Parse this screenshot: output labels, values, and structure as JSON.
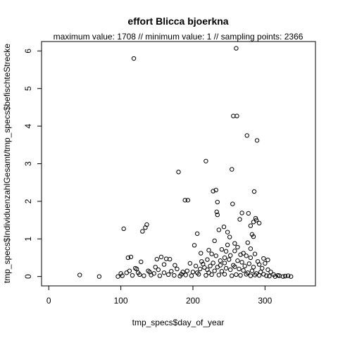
{
  "chart_data": {
    "type": "scatter",
    "title": "effort Blicca bjoerkna",
    "subtitle": "maximum value: 1708  //  minimum value: 1  // sampling points: 2366",
    "xlabel": "tmp_specs$day_of_year",
    "ylabel": "tmp_specs$IndividuenzahlGesamt/tmp_specs$befischteStrecke",
    "xlim": [
      -10,
      370
    ],
    "ylim": [
      -0.25,
      6.25
    ],
    "x_ticks": [
      0,
      100,
      200,
      300
    ],
    "y_ticks": [
      0,
      1,
      2,
      3,
      4,
      5,
      6
    ],
    "grid": false,
    "marker": "open circle",
    "points": [
      [
        43,
        0.04
      ],
      [
        70,
        0.0
      ],
      [
        104,
        1.27
      ],
      [
        118,
        5.8
      ],
      [
        130,
        1.2
      ],
      [
        134,
        1.3
      ],
      [
        136,
        1.38
      ],
      [
        180,
        2.78
      ],
      [
        189,
        2.03
      ],
      [
        193,
        2.03
      ],
      [
        202,
        0.83
      ],
      [
        206,
        1.14
      ],
      [
        211,
        0.62
      ],
      [
        218,
        3.07
      ],
      [
        228,
        2.27
      ],
      [
        232,
        2.3
      ],
      [
        234,
        1.98
      ],
      [
        233,
        1.72
      ],
      [
        234,
        1.64
      ],
      [
        236,
        1.24
      ],
      [
        243,
        1.32
      ],
      [
        248,
        1.18
      ],
      [
        251,
        1.05
      ],
      [
        254,
        2.85
      ],
      [
        255,
        1.93
      ],
      [
        256,
        4.27
      ],
      [
        261,
        4.27
      ],
      [
        260,
        6.07
      ],
      [
        265,
        1.52
      ],
      [
        268,
        1.69
      ],
      [
        275,
        3.75
      ],
      [
        277,
        1.68
      ],
      [
        280,
        1.35
      ],
      [
        282,
        1.12
      ],
      [
        284,
        1.45
      ],
      [
        285,
        2.26
      ],
      [
        287,
        1.55
      ],
      [
        288,
        1.5
      ],
      [
        289,
        3.62
      ],
      [
        292,
        1.42
      ],
      [
        284,
        1.06
      ],
      [
        280,
        0.74
      ],
      [
        276,
        0.9
      ],
      [
        270,
        0.62
      ],
      [
        262,
        0.78
      ],
      [
        258,
        0.88
      ],
      [
        252,
        0.56
      ],
      [
        246,
        0.67
      ],
      [
        240,
        0.72
      ],
      [
        232,
        0.55
      ],
      [
        226,
        0.6
      ],
      [
        110,
        0.5
      ],
      [
        114,
        0.52
      ],
      [
        128,
        0.39
      ],
      [
        150,
        0.46
      ],
      [
        156,
        0.52
      ],
      [
        163,
        0.47
      ],
      [
        168,
        0.46
      ],
      [
        175,
        0.3
      ],
      [
        186,
        0.12
      ],
      [
        196,
        0.35
      ],
      [
        204,
        0.28
      ],
      [
        214,
        0.33
      ],
      [
        220,
        0.18
      ],
      [
        224,
        0.28
      ],
      [
        230,
        0.15
      ],
      [
        238,
        0.42
      ],
      [
        244,
        0.36
      ],
      [
        250,
        0.45
      ],
      [
        256,
        0.3
      ],
      [
        262,
        0.42
      ],
      [
        268,
        0.38
      ],
      [
        272,
        0.28
      ],
      [
        278,
        0.34
      ],
      [
        284,
        0.25
      ],
      [
        290,
        0.4
      ],
      [
        296,
        0.22
      ],
      [
        300,
        0.35
      ],
      [
        304,
        0.18
      ],
      [
        308,
        0.12
      ],
      [
        312,
        0.05
      ],
      [
        318,
        0.03
      ],
      [
        325,
        0.0
      ],
      [
        332,
        0.02
      ],
      [
        336,
        0.0
      ],
      [
        100,
        0.08
      ],
      [
        108,
        0.1
      ],
      [
        112,
        0.15
      ],
      [
        120,
        0.22
      ],
      [
        124,
        0.1
      ],
      [
        140,
        0.12
      ],
      [
        146,
        0.08
      ],
      [
        152,
        0.18
      ],
      [
        160,
        0.1
      ],
      [
        170,
        0.14
      ],
      [
        178,
        0.2
      ],
      [
        184,
        0.06
      ],
      [
        192,
        0.15
      ],
      [
        200,
        0.12
      ],
      [
        210,
        0.2
      ],
      [
        216,
        0.24
      ],
      [
        222,
        0.1
      ],
      [
        228,
        0.36
      ],
      [
        234,
        0.25
      ],
      [
        240,
        0.14
      ],
      [
        246,
        0.22
      ],
      [
        252,
        0.18
      ],
      [
        258,
        0.26
      ],
      [
        264,
        0.2
      ],
      [
        270,
        0.16
      ],
      [
        276,
        0.1
      ],
      [
        282,
        0.15
      ],
      [
        288,
        0.08
      ],
      [
        294,
        0.12
      ],
      [
        298,
        0.06
      ],
      [
        302,
        0.02
      ],
      [
        96,
        0.0
      ],
      [
        102,
        0.02
      ],
      [
        116,
        0.03
      ],
      [
        126,
        0.05
      ],
      [
        132,
        0.02
      ],
      [
        142,
        0.04
      ],
      [
        154,
        0.02
      ],
      [
        166,
        0.05
      ],
      [
        174,
        0.03
      ],
      [
        182,
        0.01
      ],
      [
        190,
        0.04
      ],
      [
        198,
        0.02
      ],
      [
        208,
        0.06
      ],
      [
        218,
        0.03
      ],
      [
        226,
        0.05
      ],
      [
        236,
        0.04
      ],
      [
        244,
        0.06
      ],
      [
        254,
        0.02
      ],
      [
        260,
        0.05
      ],
      [
        266,
        0.03
      ],
      [
        274,
        0.06
      ],
      [
        280,
        0.02
      ],
      [
        286,
        0.04
      ],
      [
        292,
        0.03
      ],
      [
        306,
        0.01
      ],
      [
        314,
        0.0
      ],
      [
        320,
        0.02
      ],
      [
        328,
        0.01
      ],
      [
        298,
        0.48
      ],
      [
        304,
        0.44
      ],
      [
        266,
        0.58
      ],
      [
        244,
        0.5
      ],
      [
        238,
        0.3
      ],
      [
        220,
        0.45
      ],
      [
        212,
        0.4
      ],
      [
        206,
        0.1
      ],
      [
        160,
        0.32
      ],
      [
        148,
        0.25
      ],
      [
        138,
        0.15
      ],
      [
        122,
        0.2
      ],
      [
        292,
        0.32
      ],
      [
        286,
        0.6
      ],
      [
        280,
        0.5
      ],
      [
        274,
        0.55
      ],
      [
        258,
        0.68
      ],
      [
        248,
        0.84
      ],
      [
        230,
        0.95
      ],
      [
        222,
        0.7
      ]
    ]
  }
}
